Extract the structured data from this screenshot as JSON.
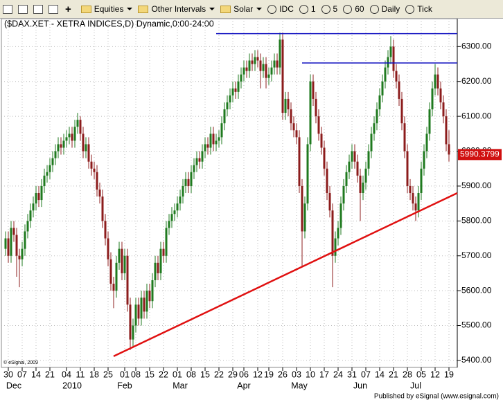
{
  "toolbar": {
    "items": [
      "Equities",
      "Other Intervals",
      "Solar",
      "IDC",
      "1",
      "5",
      "60",
      "Daily",
      "Tick"
    ]
  },
  "chart_data": {
    "type": "candlestick",
    "title": "($DAX.XET - XETRA INDICES,D) Dynamic,0:00-24:00",
    "credit": "© eSignal, 2009",
    "footer": "Published by eSignal (www.esignal.com)",
    "up_color": "#1f7a1f",
    "down_color": "#8c1c1c",
    "grid": true,
    "ylim": [
      5380,
      6380
    ],
    "yticks": [
      5400,
      5500,
      5600,
      5700,
      5800,
      5900,
      6000,
      6100,
      6200,
      6300
    ],
    "ytick_labels": [
      "5400.00",
      "5500.00",
      "5600.00",
      "5700.00",
      "5800.00",
      "5900.00",
      "6000.00",
      "6100.00",
      "6200.00",
      "6300.00"
    ],
    "last_value": 5990.3799,
    "xlim": [
      -1.5,
      163
    ],
    "xticks": [
      {
        "value": 1,
        "label": "30"
      },
      {
        "value": 6,
        "label": "07"
      },
      {
        "value": 11,
        "label": "14"
      },
      {
        "value": 16,
        "label": "21"
      },
      {
        "value": 22,
        "label": "04"
      },
      {
        "value": 27,
        "label": "11"
      },
      {
        "value": 32,
        "label": "18"
      },
      {
        "value": 37,
        "label": "25"
      },
      {
        "value": 43,
        "label": "01"
      },
      {
        "value": 47,
        "label": "08"
      },
      {
        "value": 52,
        "label": "15"
      },
      {
        "value": 57,
        "label": "22"
      },
      {
        "value": 62,
        "label": "01"
      },
      {
        "value": 67,
        "label": "08"
      },
      {
        "value": 72,
        "label": "15"
      },
      {
        "value": 77,
        "label": "22"
      },
      {
        "value": 82,
        "label": "29"
      },
      {
        "value": 86,
        "label": "06"
      },
      {
        "value": 91,
        "label": "12"
      },
      {
        "value": 95,
        "label": "19"
      },
      {
        "value": 100,
        "label": "26"
      },
      {
        "value": 105,
        "label": "03"
      },
      {
        "value": 110,
        "label": "10"
      },
      {
        "value": 115,
        "label": "17"
      },
      {
        "value": 120,
        "label": "24"
      },
      {
        "value": 125,
        "label": "31"
      },
      {
        "value": 130,
        "label": "07"
      },
      {
        "value": 135,
        "label": "14"
      },
      {
        "value": 140,
        "label": "21"
      },
      {
        "value": 145,
        "label": "28"
      },
      {
        "value": 150,
        "label": "05"
      },
      {
        "value": 155,
        "label": "12"
      },
      {
        "value": 160,
        "label": "19"
      }
    ],
    "month_labels": [
      {
        "value": 3,
        "label": "Dec"
      },
      {
        "value": 24,
        "label": "2010"
      },
      {
        "value": 43,
        "label": "Feb"
      },
      {
        "value": 63,
        "label": "Mar"
      },
      {
        "value": 86,
        "label": "Apr"
      },
      {
        "value": 106,
        "label": "May"
      },
      {
        "value": 128,
        "label": "Jun"
      },
      {
        "value": 148,
        "label": "Jul"
      }
    ],
    "trendlines": [
      {
        "color": "#e01010",
        "i": [
          39,
          163
        ],
        "values": [
          5412,
          5880
        ]
      },
      {
        "color": "#1010c0",
        "i": [
          76,
          163
        ],
        "values": [
          6337,
          6337
        ]
      },
      {
        "color": "#1010c0",
        "i": [
          107,
          163
        ],
        "values": [
          6253,
          6253
        ]
      }
    ],
    "candles": [
      [
        5720,
        5770,
        5700,
        5750
      ],
      [
        5750,
        5770,
        5680,
        5700
      ],
      [
        5700,
        5800,
        5680,
        5780
      ],
      [
        5780,
        5800,
        5740,
        5760
      ],
      [
        5760,
        5780,
        5640,
        5700
      ],
      [
        5700,
        5720,
        5610,
        5690
      ],
      [
        5690,
        5740,
        5670,
        5720
      ],
      [
        5720,
        5790,
        5700,
        5770
      ],
      [
        5770,
        5820,
        5750,
        5800
      ],
      [
        5800,
        5850,
        5780,
        5830
      ],
      [
        5830,
        5870,
        5810,
        5850
      ],
      [
        5850,
        5900,
        5830,
        5880
      ],
      [
        5880,
        5900,
        5840,
        5860
      ],
      [
        5860,
        5920,
        5840,
        5900
      ],
      [
        5900,
        5950,
        5880,
        5930
      ],
      [
        5930,
        5960,
        5910,
        5940
      ],
      [
        5940,
        5980,
        5920,
        5960
      ],
      [
        5960,
        6000,
        5940,
        5980
      ],
      [
        5980,
        6020,
        5960,
        6000
      ],
      [
        6000,
        6040,
        5980,
        6020
      ],
      [
        6020,
        6040,
        5990,
        6010
      ],
      [
        6010,
        6050,
        5990,
        6030
      ],
      [
        6030,
        6060,
        6010,
        6040
      ],
      [
        6040,
        6070,
        6020,
        6050
      ],
      [
        6050,
        6070,
        6010,
        6030
      ],
      [
        6030,
        6090,
        6010,
        6070
      ],
      [
        6070,
        6110,
        6050,
        6090
      ],
      [
        6090,
        6100,
        6030,
        6050
      ],
      [
        6050,
        6070,
        5980,
        6000
      ],
      [
        6000,
        6040,
        5980,
        6020
      ],
      [
        6020,
        6040,
        5950,
        5970
      ],
      [
        5970,
        5990,
        5930,
        5950
      ],
      [
        5950,
        5970,
        5920,
        5940
      ],
      [
        5940,
        5960,
        5870,
        5890
      ],
      [
        5890,
        5910,
        5850,
        5870
      ],
      [
        5870,
        5890,
        5780,
        5800
      ],
      [
        5800,
        5820,
        5730,
        5750
      ],
      [
        5750,
        5770,
        5670,
        5690
      ],
      [
        5690,
        5710,
        5600,
        5620
      ],
      [
        5620,
        5640,
        5550,
        5600
      ],
      [
        5600,
        5700,
        5580,
        5680
      ],
      [
        5680,
        5740,
        5660,
        5720
      ],
      [
        5720,
        5740,
        5630,
        5650
      ],
      [
        5650,
        5720,
        5630,
        5700
      ],
      [
        5700,
        5720,
        5540,
        5560
      ],
      [
        5560,
        5580,
        5430,
        5460
      ],
      [
        5460,
        5520,
        5440,
        5500
      ],
      [
        5500,
        5580,
        5480,
        5560
      ],
      [
        5560,
        5580,
        5500,
        5520
      ],
      [
        5520,
        5600,
        5500,
        5580
      ],
      [
        5580,
        5600,
        5520,
        5540
      ],
      [
        5540,
        5620,
        5520,
        5600
      ],
      [
        5600,
        5620,
        5550,
        5570
      ],
      [
        5570,
        5650,
        5550,
        5630
      ],
      [
        5630,
        5700,
        5610,
        5680
      ],
      [
        5680,
        5700,
        5630,
        5650
      ],
      [
        5650,
        5740,
        5630,
        5720
      ],
      [
        5720,
        5740,
        5680,
        5700
      ],
      [
        5700,
        5800,
        5680,
        5780
      ],
      [
        5780,
        5820,
        5760,
        5800
      ],
      [
        5800,
        5840,
        5780,
        5820
      ],
      [
        5820,
        5850,
        5800,
        5830
      ],
      [
        5830,
        5870,
        5810,
        5850
      ],
      [
        5850,
        5890,
        5830,
        5870
      ],
      [
        5870,
        5920,
        5850,
        5900
      ],
      [
        5900,
        5940,
        5880,
        5920
      ],
      [
        5920,
        5940,
        5880,
        5900
      ],
      [
        5900,
        5960,
        5880,
        5940
      ],
      [
        5940,
        5980,
        5920,
        5960
      ],
      [
        5960,
        6000,
        5940,
        5980
      ],
      [
        5980,
        6000,
        5950,
        5970
      ],
      [
        5970,
        6020,
        5950,
        6000
      ],
      [
        6000,
        6040,
        5980,
        6020
      ],
      [
        6020,
        6040,
        5990,
        6010
      ],
      [
        6010,
        6070,
        5990,
        6050
      ],
      [
        6050,
        6070,
        6000,
        6020
      ],
      [
        6020,
        6050,
        6000,
        6030
      ],
      [
        6030,
        6060,
        6010,
        6040
      ],
      [
        6040,
        6100,
        6020,
        6080
      ],
      [
        6080,
        6140,
        6060,
        6120
      ],
      [
        6120,
        6160,
        6100,
        6140
      ],
      [
        6140,
        6180,
        6120,
        6160
      ],
      [
        6160,
        6200,
        6140,
        6180
      ],
      [
        6180,
        6200,
        6150,
        6170
      ],
      [
        6170,
        6220,
        6150,
        6200
      ],
      [
        6200,
        6240,
        6180,
        6220
      ],
      [
        6220,
        6260,
        6200,
        6240
      ],
      [
        6240,
        6260,
        6210,
        6230
      ],
      [
        6230,
        6280,
        6210,
        6260
      ],
      [
        6260,
        6280,
        6230,
        6250
      ],
      [
        6250,
        6290,
        6230,
        6270
      ],
      [
        6270,
        6290,
        6240,
        6260
      ],
      [
        6260,
        6280,
        6180,
        6230
      ],
      [
        6230,
        6270,
        6210,
        6250
      ],
      [
        6250,
        6270,
        6180,
        6210
      ],
      [
        6210,
        6240,
        6190,
        6220
      ],
      [
        6220,
        6260,
        6200,
        6240
      ],
      [
        6240,
        6280,
        6220,
        6260
      ],
      [
        6260,
        6280,
        6220,
        6240
      ],
      [
        6240,
        6340,
        6220,
        6320
      ],
      [
        6320,
        6340,
        6090,
        6110
      ],
      [
        6110,
        6170,
        6090,
        6150
      ],
      [
        6150,
        6170,
        6100,
        6120
      ],
      [
        6120,
        6140,
        6060,
        6080
      ],
      [
        6080,
        6100,
        6040,
        6060
      ],
      [
        6060,
        6080,
        6020,
        6040
      ],
      [
        6040,
        6060,
        5880,
        5900
      ],
      [
        5900,
        5920,
        5670,
        5770
      ],
      [
        5770,
        5870,
        5750,
        5850
      ],
      [
        5850,
        6040,
        5830,
        6020
      ],
      [
        6020,
        6220,
        6000,
        6200
      ],
      [
        6200,
        6220,
        6130,
        6150
      ],
      [
        6150,
        6170,
        6080,
        6100
      ],
      [
        6100,
        6120,
        6030,
        6050
      ],
      [
        6050,
        6070,
        5990,
        6010
      ],
      [
        6010,
        6030,
        5930,
        5950
      ],
      [
        5950,
        5970,
        5860,
        5880
      ],
      [
        5880,
        5900,
        5810,
        5830
      ],
      [
        5830,
        5850,
        5610,
        5700
      ],
      [
        5700,
        5770,
        5680,
        5750
      ],
      [
        5750,
        5800,
        5730,
        5780
      ],
      [
        5780,
        5870,
        5760,
        5850
      ],
      [
        5850,
        5920,
        5830,
        5900
      ],
      [
        5900,
        5960,
        5880,
        5940
      ],
      [
        5940,
        5990,
        5920,
        5970
      ],
      [
        5970,
        6020,
        5950,
        6000
      ],
      [
        6000,
        6020,
        5950,
        5970
      ],
      [
        5970,
        5990,
        5910,
        5930
      ],
      [
        5930,
        5950,
        5800,
        5880
      ],
      [
        5880,
        5930,
        5860,
        5910
      ],
      [
        5910,
        5970,
        5890,
        5950
      ],
      [
        5950,
        6020,
        5930,
        6000
      ],
      [
        6000,
        6070,
        5980,
        6050
      ],
      [
        6050,
        6100,
        6030,
        6080
      ],
      [
        6080,
        6140,
        6060,
        6120
      ],
      [
        6120,
        6180,
        6100,
        6160
      ],
      [
        6160,
        6220,
        6140,
        6200
      ],
      [
        6200,
        6260,
        6180,
        6240
      ],
      [
        6240,
        6290,
        6220,
        6270
      ],
      [
        6270,
        6330,
        6250,
        6300
      ],
      [
        6300,
        6320,
        6210,
        6230
      ],
      [
        6230,
        6250,
        6180,
        6200
      ],
      [
        6200,
        6220,
        6130,
        6150
      ],
      [
        6150,
        6170,
        6060,
        6080
      ],
      [
        6080,
        6100,
        5980,
        6000
      ],
      [
        6000,
        6020,
        5880,
        5900
      ],
      [
        5900,
        5920,
        5860,
        5880
      ],
      [
        5880,
        5900,
        5830,
        5850
      ],
      [
        5850,
        5870,
        5800,
        5830
      ],
      [
        5830,
        5900,
        5810,
        5880
      ],
      [
        5880,
        5970,
        5860,
        5950
      ],
      [
        5950,
        6020,
        5930,
        6000
      ],
      [
        6000,
        6070,
        5980,
        6050
      ],
      [
        6050,
        6140,
        6030,
        6120
      ],
      [
        6120,
        6200,
        6100,
        6180
      ],
      [
        6180,
        6250,
        6160,
        6220
      ],
      [
        6220,
        6240,
        6160,
        6180
      ],
      [
        6180,
        6200,
        6120,
        6140
      ],
      [
        6140,
        6160,
        6080,
        6100
      ],
      [
        6100,
        6120,
        6000,
        6020
      ],
      [
        6020,
        6060,
        5970,
        5990.3799
      ]
    ]
  }
}
